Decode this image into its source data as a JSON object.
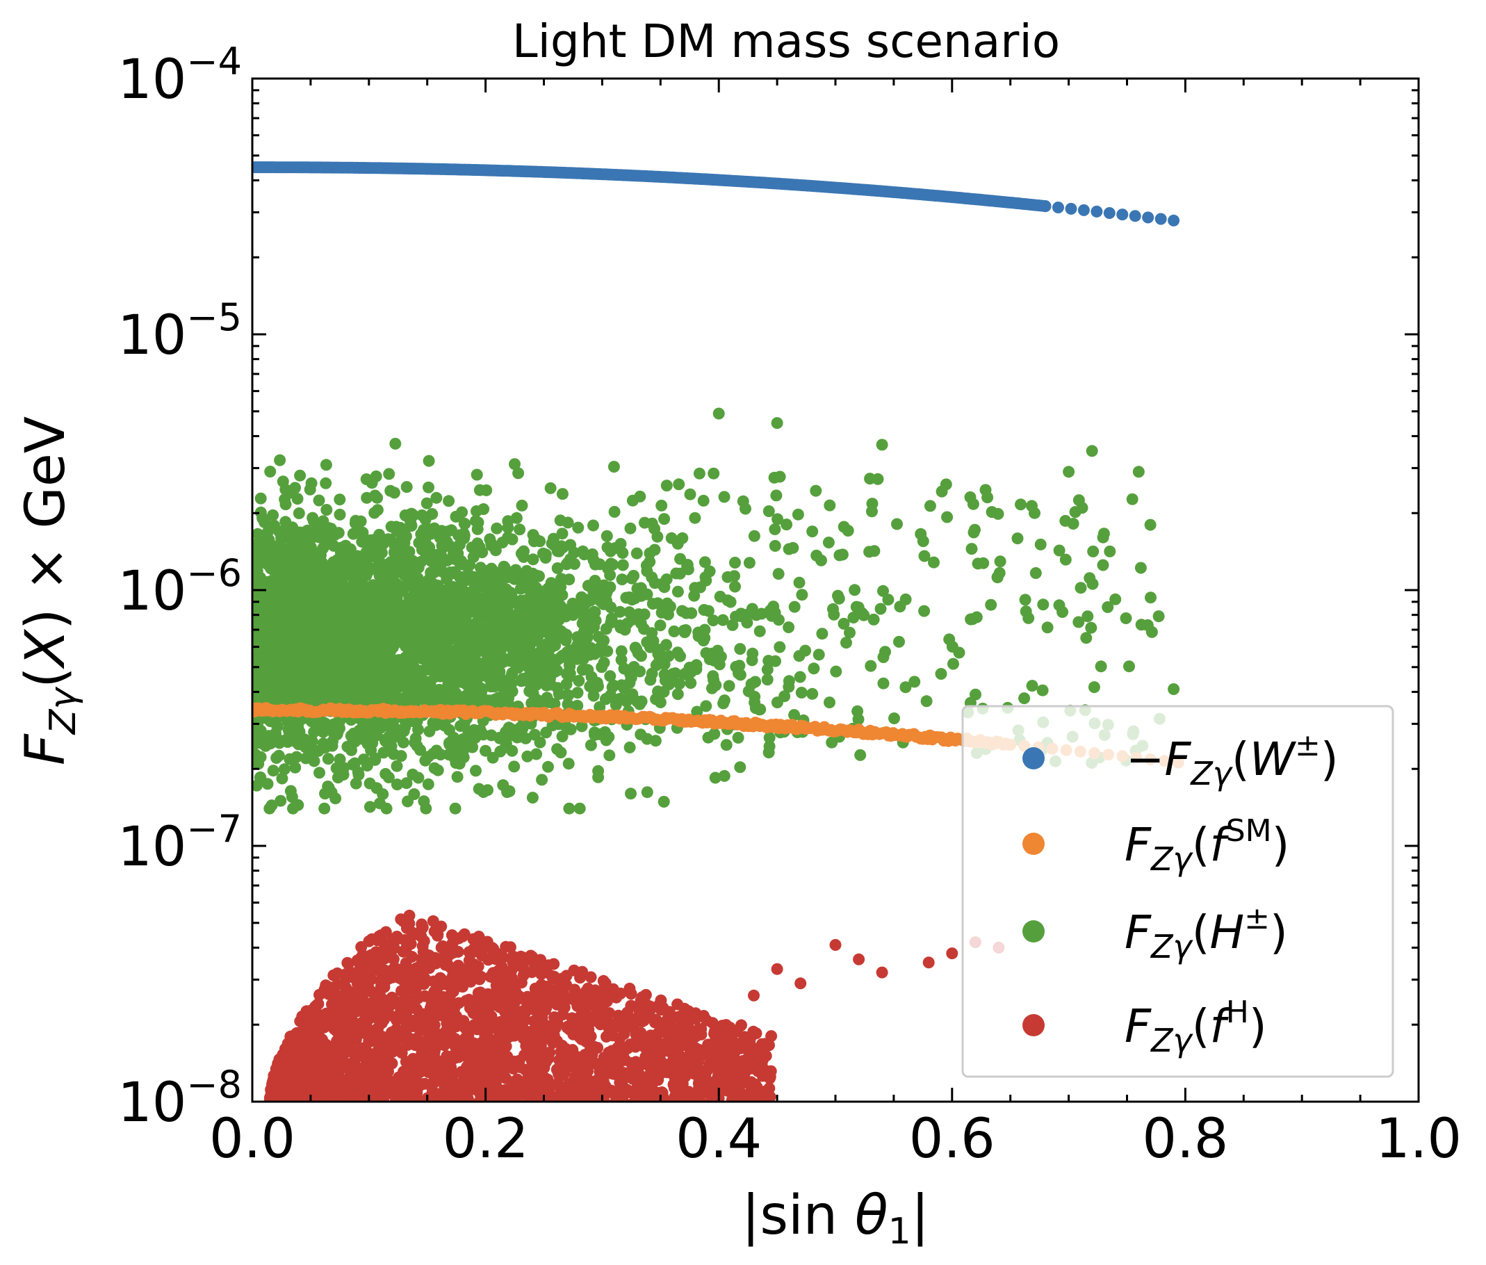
{
  "chart_data": {
    "type": "scatter",
    "title": "Light DM mass scenario",
    "xlabel": "|sin θ1|",
    "ylabel": "FZγ(X) × GeV",
    "xlim": [
      0.0,
      1.0
    ],
    "ylim": [
      1e-08,
      0.0001
    ],
    "yscale": "log",
    "xticks": [
      "0.0",
      "0.2",
      "0.4",
      "0.6",
      "0.8",
      "1.0"
    ],
    "yticks": [
      {
        "base": "10",
        "exp": "−8"
      },
      {
        "base": "10",
        "exp": "−7"
      },
      {
        "base": "10",
        "exp": "−6"
      },
      {
        "base": "10",
        "exp": "−5"
      },
      {
        "base": "10",
        "exp": "−4"
      }
    ],
    "legend_position": "lower-right",
    "series": [
      {
        "name": "−FZγ(W±)",
        "color": "#3a76b3",
        "kind": "curve",
        "x_range": [
          0.0,
          0.8
        ],
        "y_start": 4.5e-05,
        "y_end": 2.75e-05,
        "sparse_after_x": 0.68
      },
      {
        "name": "FZγ(fSM)",
        "color": "#ef8632",
        "kind": "curve",
        "x_range": [
          0.0,
          0.8
        ],
        "y_start": 3.4e-07,
        "y_end": 2.1e-07,
        "sparse_after_x": 0.65
      },
      {
        "name": "FZγ(H±)",
        "color": "#55a03c",
        "kind": "cloud",
        "x_range": [
          0.0,
          0.8
        ],
        "y_range": [
          1.4e-07,
          4.9e-06
        ],
        "dense_x_range": [
          0.0,
          0.3
        ]
      },
      {
        "name": "FZγ(fH)",
        "color": "#c63a33",
        "kind": "cloud",
        "x_range": [
          0.015,
          0.65
        ],
        "y_range": [
          1e-08,
          5.6e-08
        ],
        "peak_x": 0.13
      }
    ]
  },
  "legend": {
    "items": [
      {
        "prefix": "−",
        "arg": "W",
        "sup": "±"
      },
      {
        "prefix": "",
        "arg": "f",
        "sup": "SM"
      },
      {
        "prefix": "",
        "arg": "H",
        "sup": "±"
      },
      {
        "prefix": "",
        "arg": "f",
        "sup": "H"
      }
    ]
  }
}
